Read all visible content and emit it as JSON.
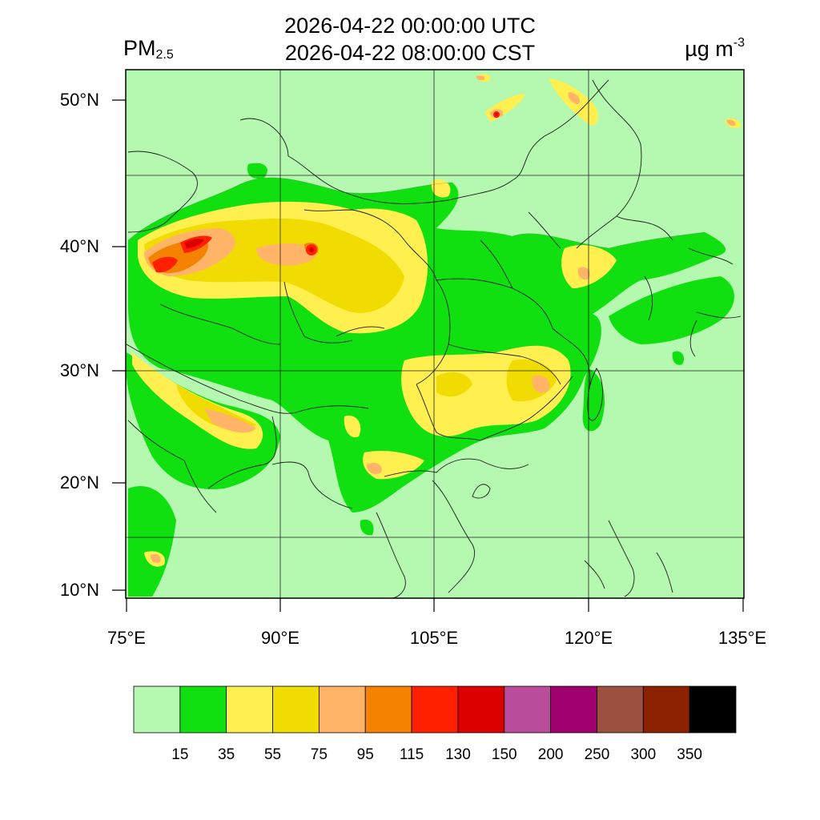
{
  "title": {
    "utc": "2026-04-22 00:00:00 UTC",
    "local": "2026-04-22 08:00:00 CST"
  },
  "variable": {
    "name": "PM",
    "subscript": "2.5"
  },
  "units": {
    "base": "µg m",
    "exponent": "-3"
  },
  "map": {
    "lat_labels": [
      "50°N",
      "40°N",
      "30°N",
      "20°N",
      "10°N"
    ],
    "lon_labels": [
      "75°E",
      "90°E",
      "105°E",
      "120°E",
      "135°E"
    ],
    "extent": {
      "lon": [
        75,
        135
      ],
      "lat": [
        9,
        52
      ]
    },
    "grid": true
  },
  "colorbar": {
    "colors": [
      "#b5f8b0",
      "#10e010",
      "#fff050",
      "#f0dc00",
      "#ffb468",
      "#f58200",
      "#ff2000",
      "#dc0000",
      "#b94c9b",
      "#a0006e",
      "#9b5040",
      "#8c2200",
      "#000000"
    ],
    "labels": [
      "15",
      "35",
      "55",
      "75",
      "95",
      "115",
      "130",
      "150",
      "200",
      "250",
      "300",
      "350"
    ]
  }
}
